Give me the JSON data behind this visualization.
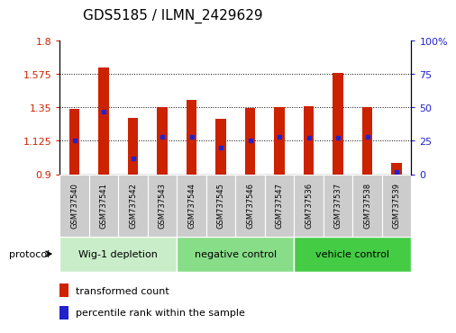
{
  "title": "GDS5185 / ILMN_2429629",
  "samples": [
    "GSM737540",
    "GSM737541",
    "GSM737542",
    "GSM737543",
    "GSM737544",
    "GSM737545",
    "GSM737546",
    "GSM737547",
    "GSM737536",
    "GSM737537",
    "GSM737538",
    "GSM737539"
  ],
  "transformed_count": [
    1.34,
    1.62,
    1.28,
    1.35,
    1.4,
    1.27,
    1.345,
    1.35,
    1.355,
    1.58,
    1.35,
    0.975
  ],
  "percentile_rank": [
    25,
    47,
    12,
    28,
    28,
    20,
    25,
    28,
    27,
    27,
    28,
    2
  ],
  "groups": [
    {
      "label": "Wig-1 depletion",
      "start": 0,
      "end": 4,
      "color": "#c8edc8"
    },
    {
      "label": "negative control",
      "start": 4,
      "end": 8,
      "color": "#88dd88"
    },
    {
      "label": "vehicle control",
      "start": 8,
      "end": 12,
      "color": "#44cc44"
    }
  ],
  "ylim_left": [
    0.9,
    1.8
  ],
  "ylim_right": [
    0,
    100
  ],
  "yticks_left": [
    0.9,
    1.125,
    1.35,
    1.575,
    1.8
  ],
  "yticks_right": [
    0,
    25,
    50,
    75,
    100
  ],
  "bar_color": "#cc2200",
  "dot_color": "#2222cc",
  "bar_width": 0.35,
  "legend_labels": [
    "transformed count",
    "percentile rank within the sample"
  ],
  "title_fontsize": 11
}
